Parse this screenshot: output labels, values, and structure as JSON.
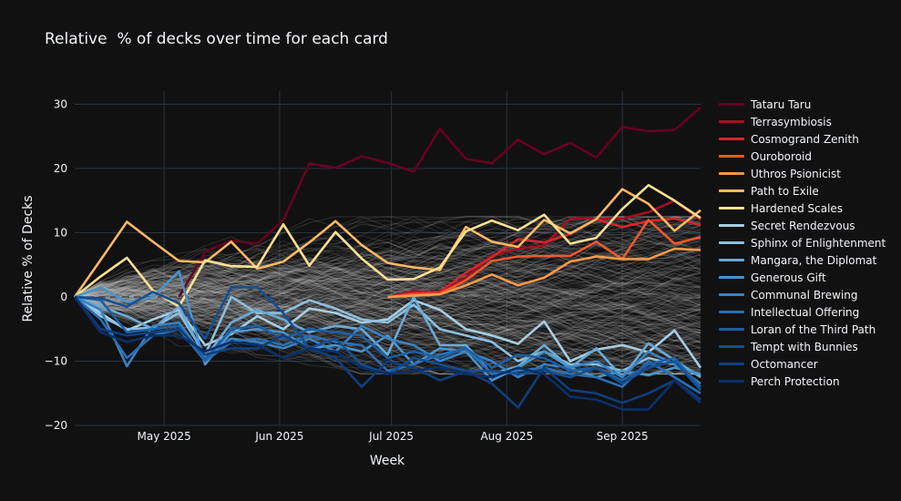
{
  "chart_data": {
    "type": "line",
    "title": "Relative  % of decks over time for each card",
    "xlabel": "Week",
    "ylabel": "Relative % of Decks",
    "ylim": [
      -20.3,
      32
    ],
    "yticks": [
      -20,
      -10,
      0,
      10,
      20,
      30
    ],
    "ytick_labels": [
      "−20",
      "−10",
      "0",
      "10",
      "20",
      "30"
    ],
    "x": [
      "2025-04-07",
      "2025-04-14",
      "2025-04-21",
      "2025-04-28",
      "2025-05-05",
      "2025-05-12",
      "2025-05-19",
      "2025-05-26",
      "2025-06-02",
      "2025-06-09",
      "2025-06-16",
      "2025-06-23",
      "2025-06-30",
      "2025-07-07",
      "2025-07-14",
      "2025-07-21",
      "2025-07-28",
      "2025-08-04",
      "2025-08-11",
      "2025-08-18",
      "2025-08-25",
      "2025-09-01",
      "2025-09-08",
      "2025-09-15",
      "2025-09-22"
    ],
    "xticks": [
      {
        "date": "2025-05-01",
        "label": "May 2025"
      },
      {
        "date": "2025-06-01",
        "label": "Jun 2025"
      },
      {
        "date": "2025-07-01",
        "label": "Jul 2025"
      },
      {
        "date": "2025-08-01",
        "label": "Aug 2025"
      },
      {
        "date": "2025-09-01",
        "label": "Sep 2025"
      }
    ],
    "grid": true,
    "zero_line": "dashed",
    "legend_position": "right",
    "background_lines": "many faint gray lines for all other cards, spread roughly between -12 and +13",
    "series": [
      {
        "name": "Tataru Taru",
        "color": "#67001f",
        "values": [
          null,
          null,
          null,
          null,
          0,
          7.0,
          8.8,
          8.3,
          12.0,
          20.8,
          20.1,
          21.9,
          20.9,
          19.5,
          26.2,
          21.5,
          20.8,
          24.5,
          22.2,
          24.0,
          21.7,
          26.5,
          25.8,
          26.0,
          29.5
        ]
      },
      {
        "name": "Terrasymbiosis",
        "color": "#a50f24",
        "values": [
          null,
          null,
          null,
          null,
          null,
          null,
          null,
          null,
          null,
          null,
          null,
          null,
          0,
          0.9,
          0.6,
          3.0,
          6.5,
          7.5,
          8.0,
          12.2,
          12.2,
          12.2,
          13.2,
          15.0,
          12.0
        ]
      },
      {
        "name": "Cosmogrand Zenith",
        "color": "#d6252b",
        "values": [
          null,
          null,
          null,
          null,
          null,
          null,
          null,
          null,
          null,
          null,
          null,
          null,
          0,
          0.6,
          0.8,
          3.8,
          6.2,
          9.0,
          8.5,
          9.8,
          12.1,
          10.9,
          11.8,
          12.2,
          11.2
        ]
      },
      {
        "name": "Ouroboroid",
        "color": "#f0582b",
        "values": [
          null,
          null,
          null,
          null,
          null,
          null,
          null,
          null,
          null,
          null,
          null,
          null,
          0,
          0.4,
          0.5,
          2.6,
          5.6,
          6.3,
          6.4,
          6.4,
          8.6,
          5.9,
          12.0,
          8.3,
          9.3
        ]
      },
      {
        "name": "Uthros Psionicist",
        "color": "#f99a45",
        "values": [
          null,
          null,
          null,
          null,
          null,
          null,
          null,
          null,
          null,
          null,
          null,
          null,
          0,
          0.2,
          0.4,
          1.8,
          3.5,
          1.8,
          3.0,
          5.5,
          6.3,
          5.9,
          5.9,
          7.5,
          7.3
        ]
      },
      {
        "name": "Path to Exile",
        "color": "#fdb863",
        "values": [
          0,
          5.8,
          11.7,
          8.6,
          5.6,
          5.4,
          8.6,
          4.4,
          5.5,
          8.5,
          11.8,
          8.1,
          5.3,
          4.6,
          4.2,
          10.9,
          8.6,
          7.8,
          12.0,
          9.9,
          12.1,
          16.8,
          14.5,
          10.3,
          13.5
        ]
      },
      {
        "name": "Hardened Scales",
        "color": "#fee090",
        "values": [
          0,
          3.2,
          6.1,
          1.0,
          -1.5,
          5.7,
          4.8,
          4.7,
          11.3,
          4.9,
          10.1,
          6.0,
          2.7,
          2.8,
          4.6,
          10.2,
          11.9,
          10.4,
          12.8,
          8.3,
          9.2,
          13.7,
          17.4,
          15.0,
          12.3
        ]
      },
      {
        "name": "Secret Rendezvous",
        "color": "#a6cde3",
        "values": [
          0,
          -2.5,
          -5.2,
          -3.5,
          -2.0,
          -7.5,
          -5.8,
          -3.0,
          -5.0,
          -1.8,
          -2.5,
          -4.0,
          -3.5,
          -0.5,
          -2.0,
          -5.0,
          -6.0,
          -7.3,
          -3.8,
          -10.0,
          -8.2,
          -7.5,
          -8.6,
          -5.2,
          -11.0
        ]
      },
      {
        "name": "Sphinx of Enlightenment",
        "color": "#8cbfe0",
        "values": [
          0,
          -3.0,
          -5.0,
          -4.8,
          -2.5,
          -9.0,
          0.0,
          -2.5,
          -2.5,
          -0.5,
          -1.8,
          -3.5,
          -4.0,
          -1.2,
          -5.0,
          -6.0,
          -7.0,
          -10.0,
          -8.5,
          -10.5,
          -10.5,
          -11.5,
          -9.5,
          -10.5,
          -12.3
        ]
      },
      {
        "name": "Mangara, the Diplomat",
        "color": "#6aaad7",
        "values": [
          0,
          -1.5,
          -3.0,
          -5.0,
          -1.5,
          -9.5,
          -4.0,
          -2.0,
          -3.5,
          -5.5,
          -4.5,
          -5.0,
          -9.0,
          0.0,
          -7.5,
          -7.5,
          -12.0,
          -10.8,
          -7.5,
          -11.0,
          -8.0,
          -12.5,
          -7.2,
          -9.8,
          -12.5
        ]
      },
      {
        "name": "Generous Gift",
        "color": "#4a94ca",
        "values": [
          0,
          1.5,
          -0.8,
          0.0,
          4.0,
          -10.5,
          -5.5,
          -5.0,
          -5.5,
          -8.0,
          -7.5,
          -8.5,
          -6.0,
          -10.5,
          -8.0,
          -8.5,
          -13.0,
          -11.0,
          -8.5,
          -11.0,
          -12.5,
          -11.5,
          -12.2,
          -11.0,
          -12.0
        ]
      },
      {
        "name": "Communal Brewing",
        "color": "#3a82c0",
        "values": [
          0,
          -2.0,
          -10.8,
          -4.5,
          -4.0,
          -9.5,
          -6.5,
          -7.0,
          -8.0,
          -6.5,
          -8.5,
          -4.5,
          -6.5,
          -7.5,
          -10.0,
          -8.5,
          -10.0,
          -12.5,
          -10.5,
          -11.0,
          -10.0,
          -12.5,
          -8.5,
          -10.5,
          -13.5
        ]
      },
      {
        "name": "Intellectual Offering",
        "color": "#2b6fb3",
        "values": [
          0,
          -3.5,
          -9.5,
          -6.0,
          -5.0,
          -10.0,
          -7.0,
          -6.5,
          -7.5,
          -6.0,
          -7.0,
          -7.5,
          -11.5,
          -10.5,
          -9.0,
          -8.0,
          -12.0,
          -11.5,
          -11.0,
          -12.0,
          -12.5,
          -14.0,
          -10.0,
          -12.5,
          -15.0
        ]
      },
      {
        "name": "Loran of the Third Path",
        "color": "#1d5fa6",
        "values": [
          0,
          -0.5,
          -5.5,
          -5.0,
          -4.5,
          -9.8,
          -5.0,
          -4.5,
          -6.5,
          -5.0,
          -5.5,
          -6.0,
          -9.5,
          -8.5,
          -9.5,
          -8.0,
          -11.0,
          -9.0,
          -9.5,
          -11.5,
          -11.0,
          -13.0,
          -10.5,
          -9.5,
          -14.0
        ]
      },
      {
        "name": "Tempt with Bunnies",
        "color": "#154f92",
        "values": [
          0,
          -0.2,
          -1.5,
          0.8,
          -1.0,
          -6.5,
          1.5,
          1.5,
          -2.5,
          -8.0,
          -6.5,
          -10.5,
          -12.0,
          -9.5,
          -10.5,
          -11.5,
          -11.5,
          -12.0,
          -11.5,
          -12.5,
          -11.0,
          -13.5,
          -11.0,
          -10.0,
          -14.5
        ]
      },
      {
        "name": "Octomancer",
        "color": "#0e3f7e",
        "values": [
          0,
          -5.0,
          -6.0,
          -5.5,
          -5.0,
          -9.0,
          -8.0,
          -8.0,
          -6.0,
          -8.0,
          -9.5,
          -14.0,
          -10.0,
          -11.0,
          -13.0,
          -11.5,
          -13.5,
          -17.2,
          -11.0,
          -14.5,
          -15.0,
          -16.5,
          -15.0,
          -13.0,
          -16.0
        ]
      },
      {
        "name": "Perch Protection",
        "color": "#08306b",
        "values": [
          0,
          -5.5,
          -7.0,
          -6.0,
          -6.0,
          -8.5,
          -7.0,
          -7.5,
          -9.5,
          -8.0,
          -8.5,
          -11.0,
          -12.0,
          -11.5,
          -11.0,
          -12.0,
          -12.5,
          -11.0,
          -12.0,
          -15.5,
          -16.0,
          -17.5,
          -17.5,
          -13.0,
          -16.5
        ]
      }
    ]
  }
}
